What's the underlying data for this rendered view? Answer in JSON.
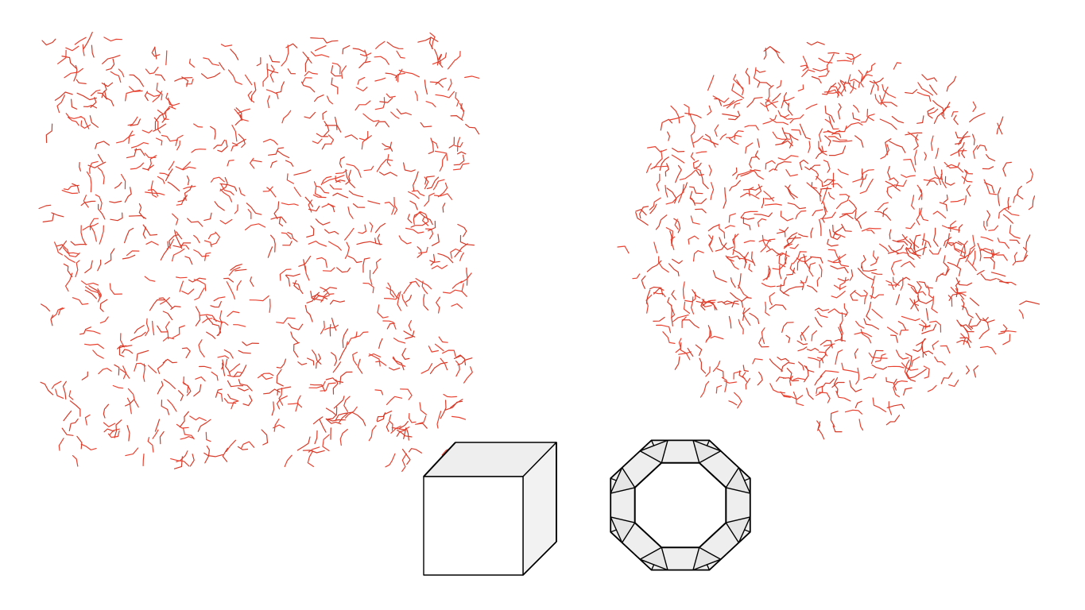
{
  "colors": {
    "background": "#ffffff",
    "stroke_red": "#e8412f",
    "stroke_red_dark": "#d63a28",
    "face_front": "#ffffff",
    "face_side": "#eeeeee",
    "outline": "#000000"
  },
  "panels": {
    "left_scatter": {
      "shape": "square",
      "mark_style": "short-red-polyline",
      "mark_count": 700
    },
    "right_scatter": {
      "shape": "rounded-blob",
      "mark_style": "short-red-polyline",
      "mark_count": 700
    }
  },
  "models": {
    "cube": {
      "icon": "cube-icon"
    },
    "ring": {
      "icon": "octagonal-ring-icon",
      "sides": 8
    }
  }
}
